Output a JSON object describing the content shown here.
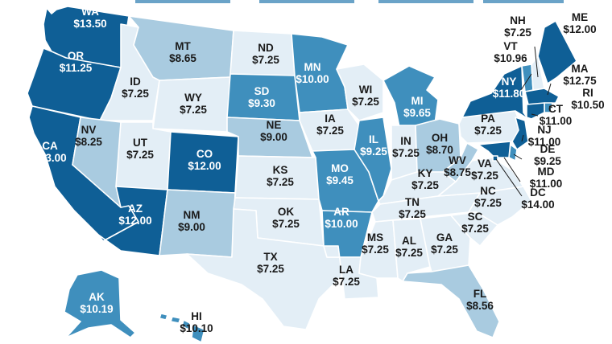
{
  "map": {
    "colors": {
      "t1": "#e3eef6",
      "t2": "#a9cbe0",
      "t3": "#3f8fbd",
      "t4": "#0f5f96",
      "legend_bar": "#6aa3c8"
    },
    "states": {
      "WA": {
        "name": "WA",
        "wage": "$13.50",
        "tier": "t4"
      },
      "OR": {
        "name": "OR",
        "wage": "$11.25",
        "tier": "t4"
      },
      "CA": {
        "name": "CA",
        "wage": "$13.00",
        "tier": "t4"
      },
      "ID": {
        "name": "ID",
        "wage": "$7.25",
        "tier": "t1"
      },
      "NV": {
        "name": "NV",
        "wage": "$8.25",
        "tier": "t2"
      },
      "MT": {
        "name": "MT",
        "wage": "$8.65",
        "tier": "t2"
      },
      "WY": {
        "name": "WY",
        "wage": "$7.25",
        "tier": "t1"
      },
      "UT": {
        "name": "UT",
        "wage": "$7.25",
        "tier": "t1"
      },
      "AZ": {
        "name": "AZ",
        "wage": "$12.00",
        "tier": "t4"
      },
      "CO": {
        "name": "CO",
        "wage": "$12.00",
        "tier": "t4"
      },
      "NM": {
        "name": "NM",
        "wage": "$9.00",
        "tier": "t2"
      },
      "ND": {
        "name": "ND",
        "wage": "$7.25",
        "tier": "t1"
      },
      "SD": {
        "name": "SD",
        "wage": "$9.30",
        "tier": "t3"
      },
      "NE": {
        "name": "NE",
        "wage": "$9.00",
        "tier": "t2"
      },
      "KS": {
        "name": "KS",
        "wage": "$7.25",
        "tier": "t1"
      },
      "OK": {
        "name": "OK",
        "wage": "$7.25",
        "tier": "t1"
      },
      "TX": {
        "name": "TX",
        "wage": "$7.25",
        "tier": "t1"
      },
      "MN": {
        "name": "MN",
        "wage": "$10.00",
        "tier": "t3"
      },
      "IA": {
        "name": "IA",
        "wage": "$7.25",
        "tier": "t1"
      },
      "MO": {
        "name": "MO",
        "wage": "$9.45",
        "tier": "t3"
      },
      "AR": {
        "name": "AR",
        "wage": "$10.00",
        "tier": "t3"
      },
      "LA": {
        "name": "LA",
        "wage": "$7.25",
        "tier": "t1"
      },
      "WI": {
        "name": "WI",
        "wage": "$7.25",
        "tier": "t1"
      },
      "IL": {
        "name": "IL",
        "wage": "$9.25",
        "tier": "t3"
      },
      "MI": {
        "name": "MI",
        "wage": "$9.65",
        "tier": "t3"
      },
      "IN": {
        "name": "IN",
        "wage": "$7.25",
        "tier": "t1"
      },
      "OH": {
        "name": "OH",
        "wage": "$8.70",
        "tier": "t2"
      },
      "KY": {
        "name": "KY",
        "wage": "$7.25",
        "tier": "t1"
      },
      "TN": {
        "name": "TN",
        "wage": "$7.25",
        "tier": "t1"
      },
      "MS": {
        "name": "MS",
        "wage": "$7.25",
        "tier": "t1"
      },
      "AL": {
        "name": "AL",
        "wage": "$7.25",
        "tier": "t1"
      },
      "GA": {
        "name": "GA",
        "wage": "$7.25",
        "tier": "t1"
      },
      "FL": {
        "name": "FL",
        "wage": "$8.56",
        "tier": "t2"
      },
      "SC": {
        "name": "SC",
        "wage": "$7.25",
        "tier": "t1"
      },
      "NC": {
        "name": "NC",
        "wage": "$7.25",
        "tier": "t1"
      },
      "VA": {
        "name": "VA",
        "wage": "$7.25",
        "tier": "t1"
      },
      "WV": {
        "name": "WV",
        "wage": "$8.75",
        "tier": "t2"
      },
      "PA": {
        "name": "PA",
        "wage": "$7.25",
        "tier": "t1"
      },
      "NY": {
        "name": "NY",
        "wage": "$11.80",
        "tier": "t4"
      },
      "VT": {
        "name": "VT",
        "wage": "$10.96",
        "tier": "t3"
      },
      "NH": {
        "name": "NH",
        "wage": "$7.25",
        "tier": "t1"
      },
      "ME": {
        "name": "ME",
        "wage": "$12.00",
        "tier": "t4"
      },
      "MA": {
        "name": "MA",
        "wage": "$12.75",
        "tier": "t4"
      },
      "RI": {
        "name": "RI",
        "wage": "$10.50",
        "tier": "t3"
      },
      "CT": {
        "name": "CT",
        "wage": "$11.00",
        "tier": "t4"
      },
      "NJ": {
        "name": "NJ",
        "wage": "$11.00",
        "tier": "t4"
      },
      "DE": {
        "name": "DE",
        "wage": "$9.25",
        "tier": "t3"
      },
      "MD": {
        "name": "MD",
        "wage": "$11.00",
        "tier": "t4"
      },
      "DC": {
        "name": "DC",
        "wage": "$14.00",
        "tier": "t4"
      },
      "AK": {
        "name": "AK",
        "wage": "$10.19",
        "tier": "t3"
      },
      "HI": {
        "name": "HI",
        "wage": "$10.10",
        "tier": "t3"
      }
    }
  }
}
